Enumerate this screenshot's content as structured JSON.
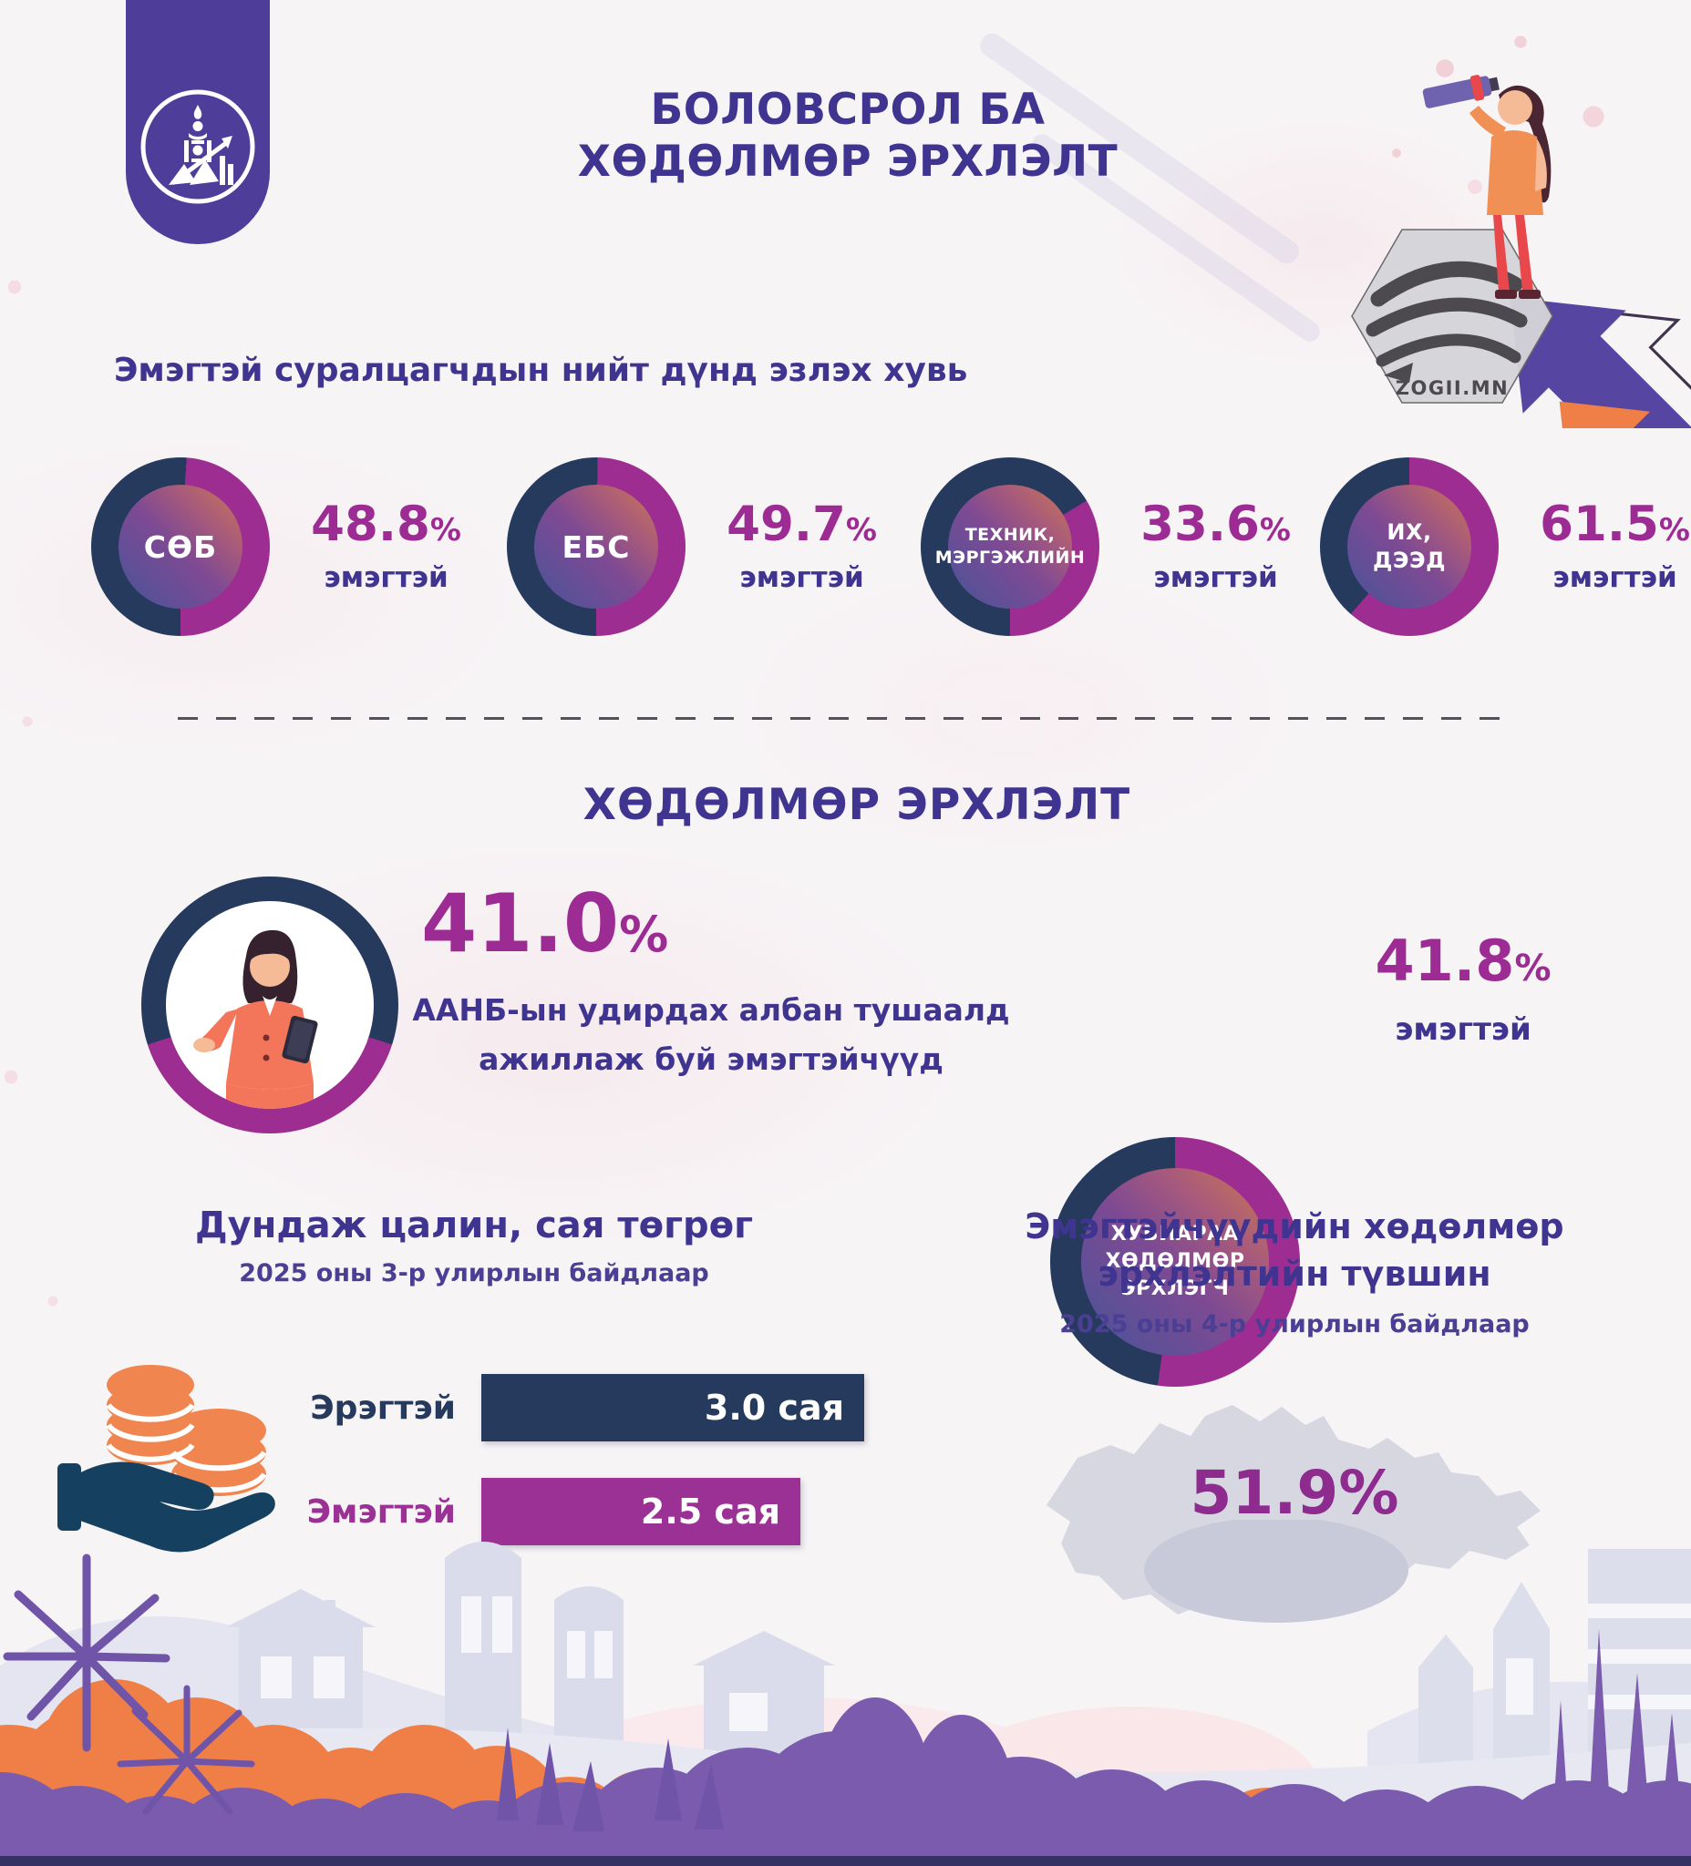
{
  "colors": {
    "navy": "#263a5e",
    "magenta": "#9e2d92",
    "deep_purple": "#3f3590",
    "bar_purple": "#9b3095",
    "ribbon_purple": "#4f3e99",
    "orange": "#ef7f47",
    "bush_purple": "#7a5bad",
    "silhouette": "#e2e3ef",
    "map_gray": "#d7d7e1",
    "rate_purple": "#8e2b8e"
  },
  "header": {
    "title_line1": "БОЛОВСРОЛ БА",
    "title_line2": "ХӨДӨЛМӨР ЭРХЛЭЛТ",
    "brand": "ZOGII.MN"
  },
  "education": {
    "heading": "Эмэгтэй суралцагчдын нийт дүнд эзлэх хувь",
    "donuts": [
      {
        "label_lines": [
          "СӨБ"
        ],
        "value": "48.8",
        "suffix": "%",
        "caption": "эмэгтэй",
        "percent": 48.8,
        "arc": [
          4,
          180
        ]
      },
      {
        "label_lines": [
          "ЕБС"
        ],
        "value": "49.7",
        "suffix": "%",
        "caption": "эмэгтэй",
        "percent": 49.7,
        "arc": [
          1,
          180
        ]
      },
      {
        "label_lines": [
          "ТЕХНИК,",
          "МЭРГЭЖЛИЙН"
        ],
        "value": "33.6",
        "suffix": "%",
        "caption": "эмэгтэй",
        "percent": 33.6,
        "arc": [
          59,
          180
        ]
      },
      {
        "label_lines": [
          "ИХ,",
          "ДЭЭД"
        ],
        "value": "61.5",
        "suffix": "%",
        "caption": "эмэгтэй",
        "percent": 61.5,
        "arc": [
          0,
          221
        ]
      }
    ]
  },
  "employment": {
    "heading": "ХӨДӨЛМӨР ЭРХЛЭЛТ",
    "manager": {
      "value": "41.0",
      "suffix": "%",
      "caption_line1": "ААНБ-ын удирдах албан тушаалд",
      "caption_line2": "ажиллаж буй эмэгтэйчүүд",
      "percent": 41.0,
      "arc": [
        108,
        252
      ]
    },
    "self_employed": {
      "label_lines": [
        "ХУВИАРАА",
        "ХӨДӨЛМӨР",
        "ЭРХЛЭГЧ"
      ],
      "value": "41.8",
      "suffix": "%",
      "caption": "эмэгтэй",
      "percent": 41.8,
      "arc": [
        0,
        188
      ]
    }
  },
  "salary": {
    "title": "Дундаж цалин, сая төгрөг",
    "subtitle": "2025 оны 3-р улирлын байдлаар",
    "max_value": 3.0,
    "bars": [
      {
        "label": "Эрэгтэй",
        "value": 3.0,
        "value_label": "3.0 сая"
      },
      {
        "label": "Эмэгтэй",
        "value": 2.5,
        "value_label": "2.5 сая"
      }
    ]
  },
  "employment_rate": {
    "title_line1": "Эмэгтэйчүүдийн хөдөлмөр",
    "title_line2": "эрхлэлтийн түвшин",
    "subtitle": "2025 оны 4-р улирлын байдлаар",
    "value": "51.9%"
  },
  "chart_data": [
    {
      "type": "pie",
      "title": "Эмэгтэй суралцагчдын нийт дүнд эзлэх хувь",
      "categories": [
        "СӨБ",
        "ЕБС",
        "ТЕХНИК, МЭРГЭЖЛИЙН",
        "ИХ, ДЭЭД"
      ],
      "values": [
        48.8,
        49.7,
        33.6,
        61.5
      ],
      "unit": "% эмэгтэй",
      "legend_position": "none"
    },
    {
      "type": "pie",
      "title": "ААНБ-ын удирдах албан тушаалд ажиллаж буй эмэгтэйчүүд",
      "categories": [
        "эмэгтэй"
      ],
      "values": [
        41.0
      ],
      "unit": "%"
    },
    {
      "type": "pie",
      "title": "ХУВИАРАА ХӨДӨЛМӨР ЭРХЛЭГЧ",
      "categories": [
        "эмэгтэй"
      ],
      "values": [
        41.8
      ],
      "unit": "%"
    },
    {
      "type": "bar",
      "title": "Дундаж цалин, сая төгрөг",
      "subtitle": "2025 оны 3-р улирлын байдлаар",
      "categories": [
        "Эрэгтэй",
        "Эмэгтэй"
      ],
      "values": [
        3.0,
        2.5
      ],
      "unit": "сая төгрөг",
      "xlim": [
        0,
        3.0
      ]
    },
    {
      "type": "map",
      "title": "Эмэгтэйчүүдийн хөдөлмөр эрхлэлтийн түвшин",
      "subtitle": "2025 оны 4-р улирлын байдлаар",
      "categories": [
        "Монгол улс"
      ],
      "values": [
        51.9
      ],
      "unit": "%"
    }
  ]
}
